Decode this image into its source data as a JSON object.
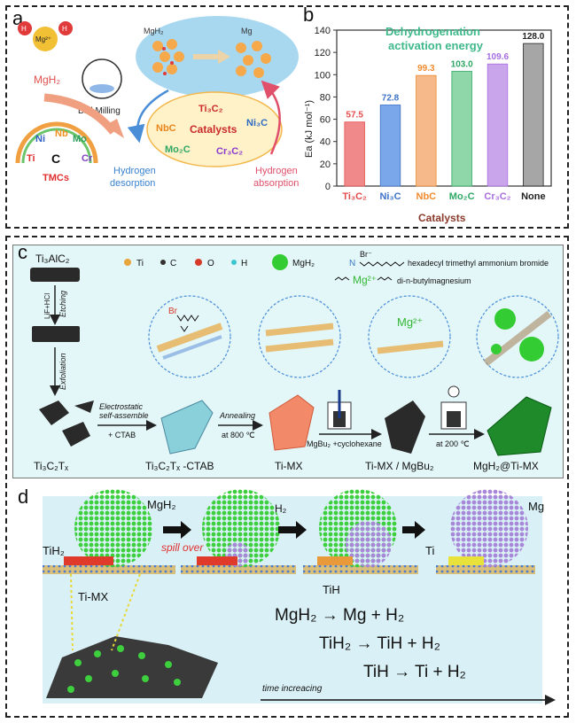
{
  "panel_a": {
    "label": "a",
    "mg_ion": "Mg²⁺",
    "h_atom": "H",
    "mgh2_reactant": "MgH₂",
    "ball_milling": "Ball Milling",
    "tmc_c": "C",
    "tmcs": "TMCs",
    "tmc_elements": [
      "Ti",
      "Ni",
      "Nb",
      "Mo",
      "Cr"
    ],
    "mgh2_top": "MgH₂",
    "mg_top": "Mg",
    "catalysts": "Catalysts",
    "catalyst_items": [
      "Ti₃C₂",
      "NbC",
      "Ni₃C",
      "Mo₂C",
      "Cr₃C₂"
    ],
    "hydrogen_desorption": [
      "Hydrogen",
      "desorption"
    ],
    "hydrogen_absorption": [
      "Hydrogen",
      "absorption"
    ]
  },
  "panel_b": {
    "label": "b",
    "chart_data": {
      "type": "bar",
      "title": [
        "Dehydrogenation",
        "activation energy"
      ],
      "categories": [
        "Ti₃C₂",
        "Ni₃C",
        "NbC",
        "Mo₂C",
        "Cr₃C₂",
        "None"
      ],
      "values": [
        57.5,
        72.8,
        99.3,
        103.0,
        109.6,
        128.0
      ],
      "value_labels": [
        "57.5",
        "72.8",
        "99.3",
        "103.0",
        "109.6",
        "128.0"
      ],
      "colors": [
        "#f08a8a",
        "#7aa6ea",
        "#f6b98a",
        "#8fd7a8",
        "#c9a6ec",
        "#a6a6a6"
      ],
      "label_colors": [
        "#e44b4b",
        "#3d73c9",
        "#ef8a2e",
        "#2ea764",
        "#a86de0",
        "#222222"
      ],
      "ylabel": "Ea (kJ mol⁻¹)",
      "xlabel": "Catalysts",
      "ylim": [
        0,
        140
      ],
      "yticks": [
        "0",
        "20",
        "40",
        "60",
        "80",
        "100",
        "120",
        "140"
      ],
      "ytick_values": [
        0,
        20,
        40,
        60,
        80,
        100,
        120,
        140
      ]
    }
  },
  "panel_c": {
    "label": "c",
    "start_material": "Ti₃AlC₂",
    "legend_items": [
      "Ti",
      "C",
      "O",
      "H",
      "MgH₂"
    ],
    "legend_colors": [
      "#e8a63a",
      "#333333",
      "#d83a2a",
      "#3cc4cf",
      "#33cc33"
    ],
    "ctab_name": "hexadecyl trimethyl ammonium bromide",
    "mgbu2_name": "di-n-butylmagnesium",
    "mg_ion": "Mg²⁺",
    "n_symbol": "N",
    "br_symbol": "Br⁻",
    "steps_vertical": [
      "LiF+HCl",
      "Etching",
      "Exfoliation"
    ],
    "step1_lines": [
      "Electrostatic",
      "self-assemble",
      "+ CTAB"
    ],
    "step2_lines": [
      "Annealing",
      "at 800 ℃"
    ],
    "step3": "MgBu₂ +cyclohexane",
    "step4": "at 200 ℃",
    "products": [
      "Ti₃C₂Tₓ",
      "Ti₃C₂Tₓ -CTAB",
      "Ti-MX",
      "Ti-MX / MgBu₂",
      "MgH₂@Ti-MX"
    ],
    "br_label": "Br",
    "mg2_label": "Mg²⁺"
  },
  "panel_d": {
    "label": "d",
    "mgh2": "MgH₂",
    "h2": "H₂",
    "mg": "Mg",
    "tih2": "TiH₂",
    "spill_over": "spill over",
    "tih": "TiH",
    "ti": "Ti",
    "timx": "Ti-MX",
    "time_arrow": "time increacing",
    "equations": [
      "MgH₂ → Mg + H₂",
      "TiH₂ → TiH + H₂",
      "TiH → Ti + H₂"
    ]
  },
  "colors": {
    "mgh2_green": "#3dcf3d",
    "mg_purple": "#a887d9",
    "ti_yellow": "#e8e23a",
    "tih2_red": "#e03a2a",
    "panel_c_bg": "#e3f6f8",
    "panel_d_bg": "#d9f1f6"
  }
}
